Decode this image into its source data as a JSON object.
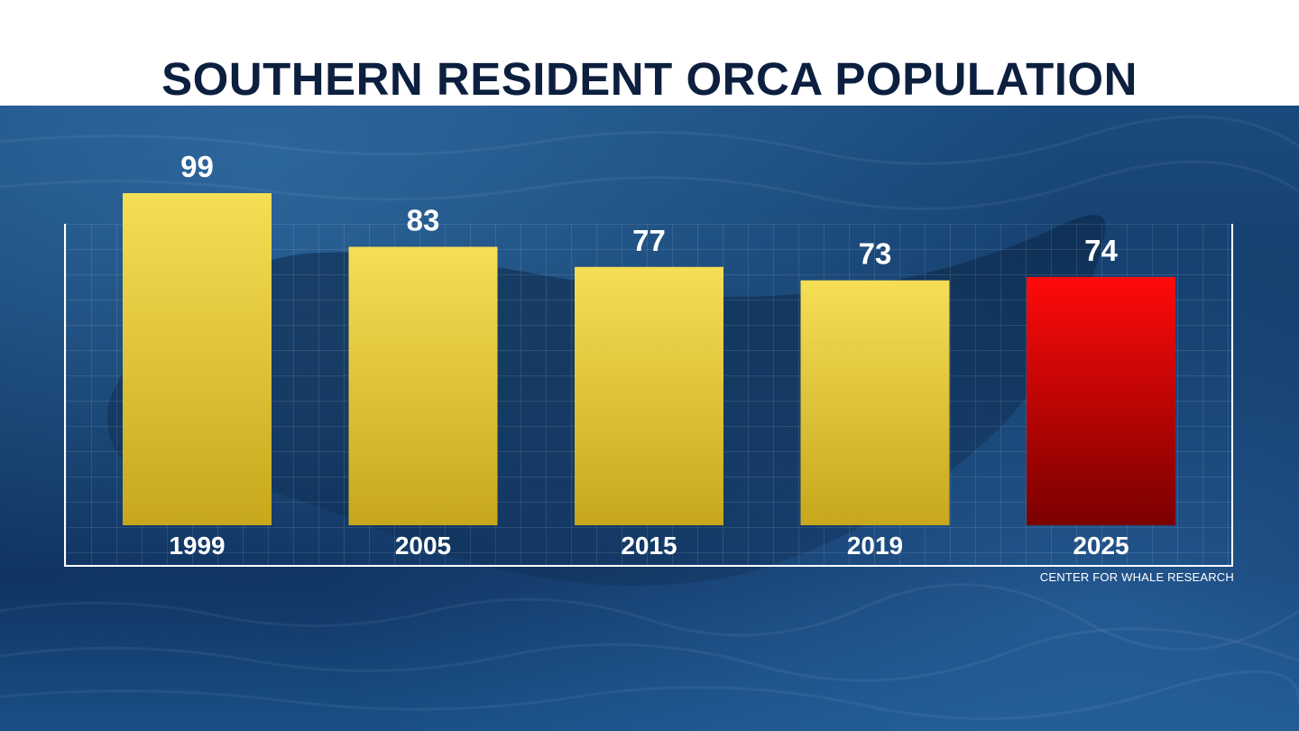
{
  "chart_data": {
    "type": "bar",
    "title": "SOUTHERN RESIDENT ORCA POPULATION",
    "categories": [
      "1999",
      "2005",
      "2015",
      "2019",
      "2025"
    ],
    "values": [
      99,
      83,
      77,
      73,
      74
    ],
    "xlabel": "",
    "ylabel": "",
    "ylim": [
      0,
      99
    ],
    "highlight_category": "2025",
    "colors": {
      "bar": "#e8cf3f",
      "highlight": "#e00000",
      "label": "#ffffff"
    },
    "source": "CENTER FOR WHALE RESEARCH"
  }
}
